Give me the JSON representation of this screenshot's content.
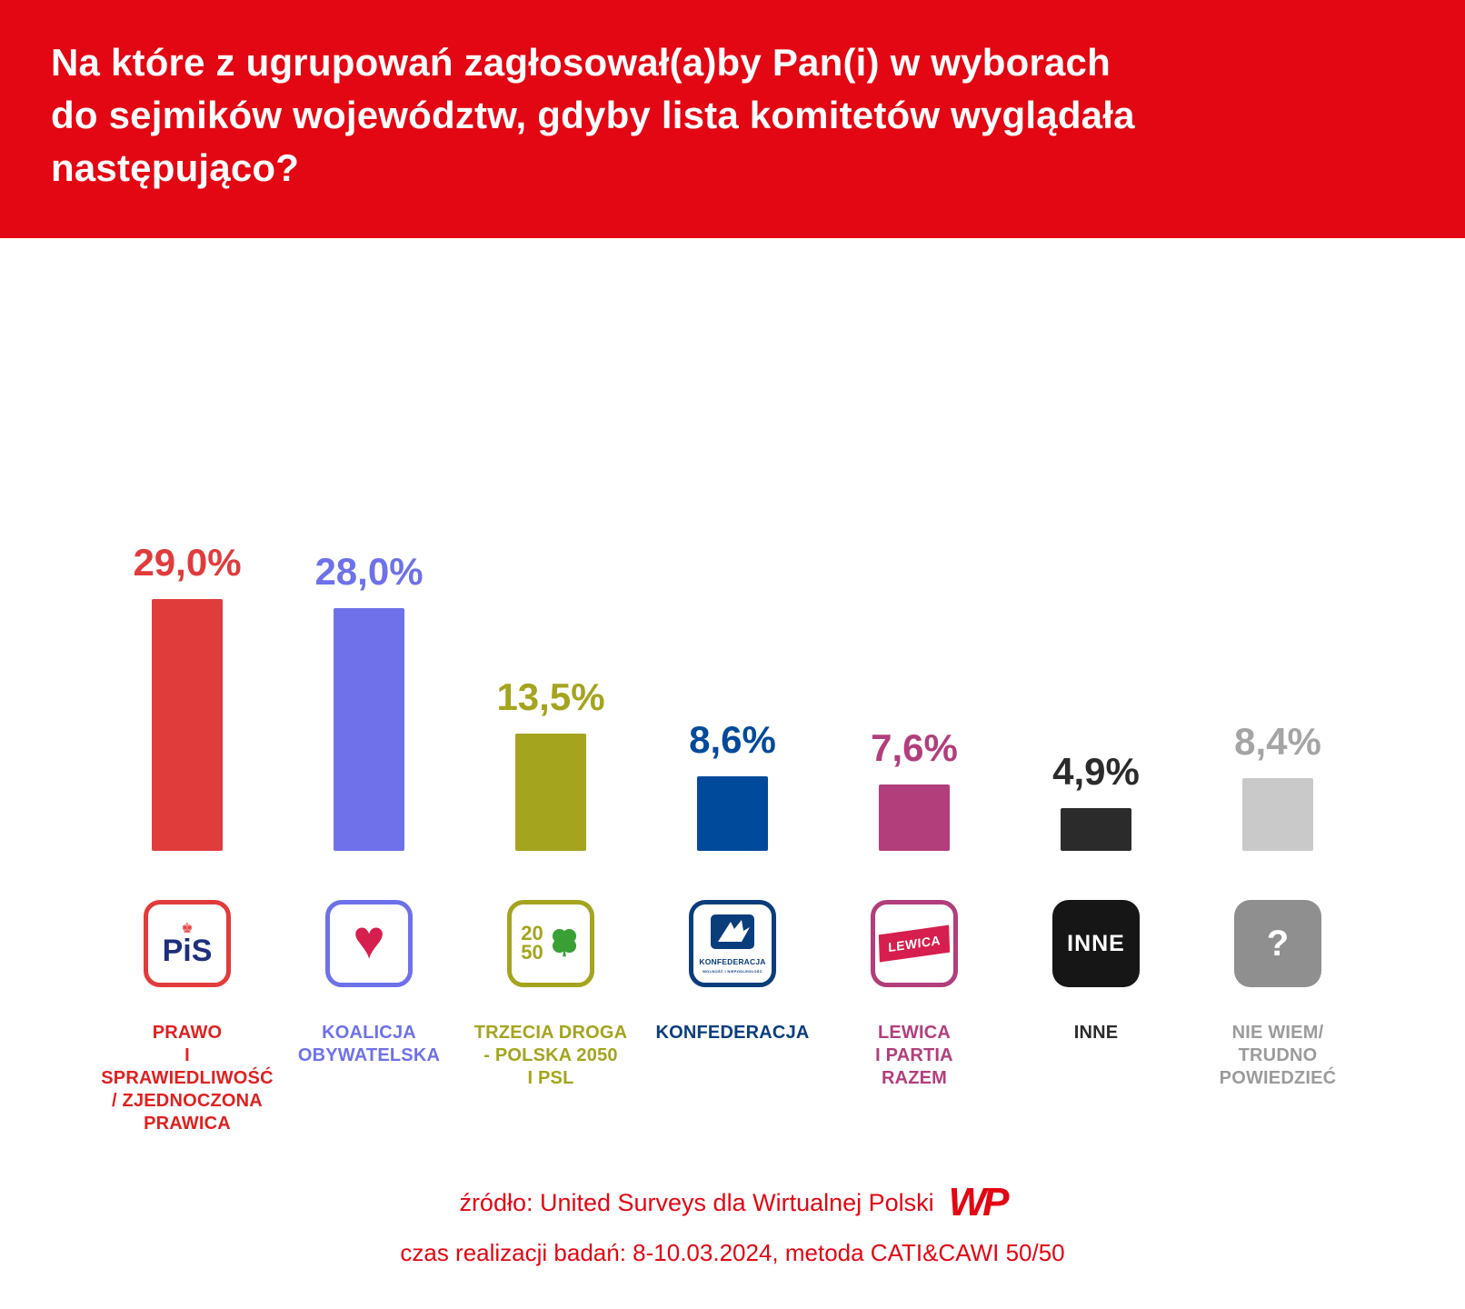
{
  "header": {
    "title": "Na które z ugrupowań zagłosował(a)by Pan(i) w wyborach\ndo sejmików województw, gdyby lista komitetów wyglądała\nnastępująco?"
  },
  "chart_data": {
    "type": "bar",
    "title": "Na które z ugrupowań zagłosował(a)by Pan(i) w wyborach do sejmików województw, gdyby lista komitetów wyglądała następująco?",
    "unit": "%",
    "ylim": [
      0,
      30
    ],
    "grid": false,
    "legend": false,
    "categories": [
      "Prawo i Sprawiedliwość / Zjednoczona Prawica",
      "Koalicja Obywatelska",
      "Trzecia Droga - Polska 2050 i PSL",
      "Konfederacja",
      "Lewica i Partia Razem",
      "Inne",
      "Nie wiem / trudno powiedzieć"
    ],
    "values": [
      29.0,
      28.0,
      13.5,
      8.6,
      7.6,
      4.9,
      8.4
    ],
    "value_labels": [
      "29,0%",
      "28,0%",
      "13,5%",
      "8,6%",
      "7,6%",
      "4,9%",
      "8,4%"
    ],
    "parties": [
      {
        "name": "PRAWO\nI SPRAWIEDLIWOŚĆ\n/ ZJEDNOCZONA\nPRAWICA",
        "value": 29.0,
        "value_label": "29,0%",
        "color": "#e03c3c",
        "label_color": "#e02020",
        "icon_text": "PiS"
      },
      {
        "name": "KOALICJA\nOBYWATELSKA",
        "value": 28.0,
        "value_label": "28,0%",
        "color": "#6e71e9",
        "label_color": "#6e71e9"
      },
      {
        "name": "TRZECIA DROGA\n- POLSKA 2050\nI PSL",
        "value": 13.5,
        "value_label": "13,5%",
        "color": "#a4a41f",
        "label_color": "#a4a41f",
        "icon_text": "20\n50"
      },
      {
        "name": "KONFEDERACJA",
        "value": 8.6,
        "value_label": "8,6%",
        "color": "#004a9c",
        "label_color": "#0a3d7c",
        "icon_text": "KONFEDERACJA",
        "icon_subtext": "WOLNOŚĆ I NIEPODLEGŁOŚĆ"
      },
      {
        "name": "LEWICA\nI PARTIA\nRAZEM",
        "value": 7.6,
        "value_label": "7,6%",
        "color": "#b23e7c",
        "label_color": "#b23e7c",
        "icon_text": "LEWICA"
      },
      {
        "name": "INNE",
        "value": 4.9,
        "value_label": "4,9%",
        "color": "#2b2b2b",
        "label_color": "#2b2b2b",
        "icon_text": "INNE"
      },
      {
        "name": "NIE WIEM/\nTRUDNO\nPOWIEDZIEĆ",
        "value": 8.4,
        "value_label": "8,4%",
        "color": "#c9c9c9",
        "value_color": "#a5a5a5",
        "label_color": "#9b9b9b",
        "icon_text": "?"
      }
    ]
  },
  "footer": {
    "source": "źródło: United Surveys dla Wirtualnej Polski",
    "details": "czas realizacji badań: 8-10.03.2024, metoda CATI&CAWI 50/50",
    "logo": "WP"
  }
}
